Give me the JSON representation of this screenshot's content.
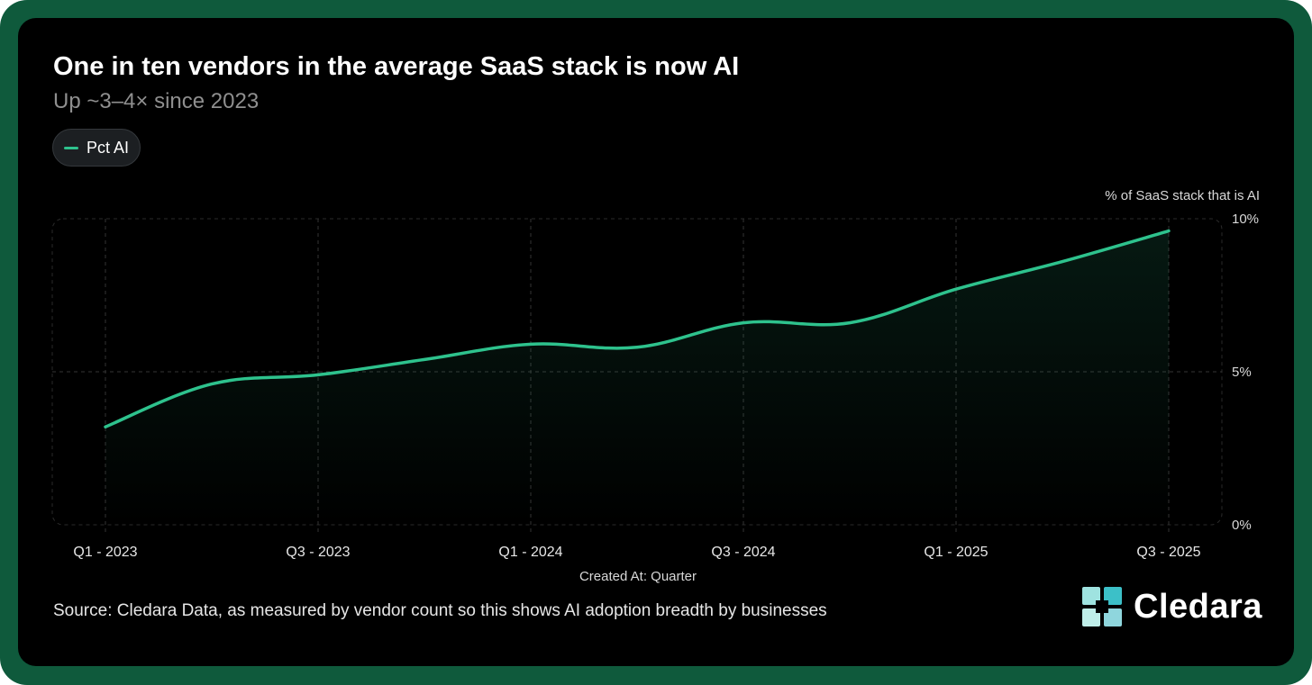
{
  "header": {
    "title": "One in ten vendors in the average SaaS stack is now AI",
    "subtitle": "Up ~3–4× since 2023"
  },
  "legend": {
    "label": "Pct AI"
  },
  "footer": {
    "source": "Source: Cledara Data, as measured by vendor count so this shows AI adoption breadth by businesses",
    "brand": "Cledara"
  },
  "colors": {
    "line": "#2ec28d",
    "frame": "#0f5a3c",
    "background": "#000000"
  },
  "chart_data": {
    "type": "line",
    "title": "One in ten vendors in the average SaaS stack is now AI",
    "subtitle": "Up ~3–4× since 2023",
    "xlabel": "Created At: Quarter",
    "ylabel": "% of SaaS stack that is AI",
    "ylim": [
      0,
      10
    ],
    "y_ticks": [
      {
        "value": 0,
        "label": "0%"
      },
      {
        "value": 5,
        "label": "5%"
      },
      {
        "value": 10,
        "label": "10%"
      }
    ],
    "x_ticks": [
      "Q1 - 2023",
      "Q3 - 2023",
      "Q1 - 2024",
      "Q3 - 2024",
      "Q1 - 2025",
      "Q3 - 2025"
    ],
    "categories": [
      "Q1 - 2023",
      "Q2 - 2023",
      "Q3 - 2023",
      "Q4 - 2023",
      "Q1 - 2024",
      "Q2 - 2024",
      "Q3 - 2024",
      "Q4 - 2024",
      "Q1 - 2025",
      "Q2 - 2025",
      "Q3 - 2025"
    ],
    "series": [
      {
        "name": "Pct AI",
        "values": [
          3.2,
          4.6,
          4.9,
          5.4,
          5.9,
          5.8,
          6.6,
          6.6,
          7.7,
          8.6,
          9.6
        ]
      }
    ],
    "grid": true,
    "legend": "top-left"
  }
}
